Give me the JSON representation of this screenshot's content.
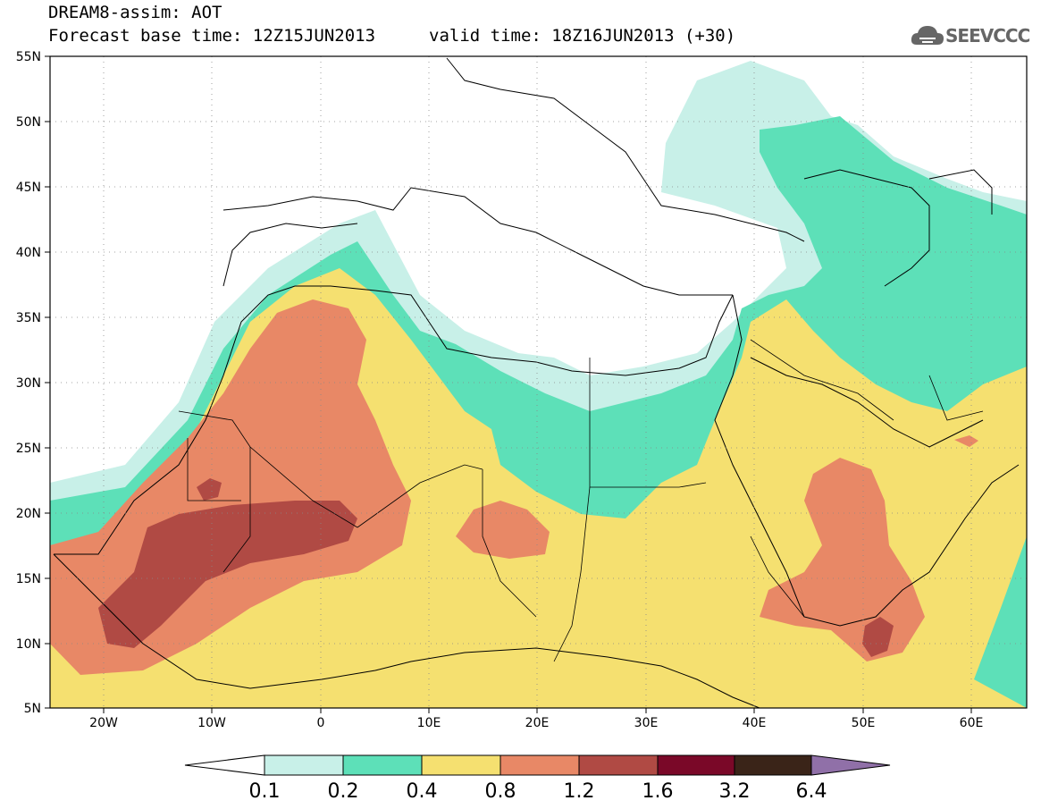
{
  "header": {
    "title": "DREAM8-assim: AOT",
    "base_time": "Forecast base time: 12Z15JUN2013",
    "valid_time": "valid time: 18Z16JUN2013 (+30)",
    "logo": "SEEVCCC",
    "logo_icon": "cloud-icon"
  },
  "map": {
    "lon_labels": [
      "20W",
      "10W",
      "0",
      "10E",
      "20E",
      "30E",
      "40E",
      "50E",
      "60E"
    ],
    "lat_labels": [
      "55N",
      "50N",
      "45N",
      "40N",
      "35N",
      "30N",
      "25N",
      "20N",
      "15N",
      "10N",
      "5N"
    ],
    "lon_range": [
      -25,
      65
    ],
    "lat_range": [
      5,
      55
    ],
    "grid": "dotted"
  },
  "colorbar": {
    "labels": [
      "0.1",
      "0.2",
      "0.4",
      "0.8",
      "1.2",
      "1.6",
      "3.2",
      "6.4"
    ],
    "colors": [
      "#ffffff",
      "#c8f0e8",
      "#5de0b8",
      "#f5e070",
      "#e88866",
      "#b04a44",
      "#7a0828",
      "#3a2418",
      "#9070a8"
    ]
  }
}
